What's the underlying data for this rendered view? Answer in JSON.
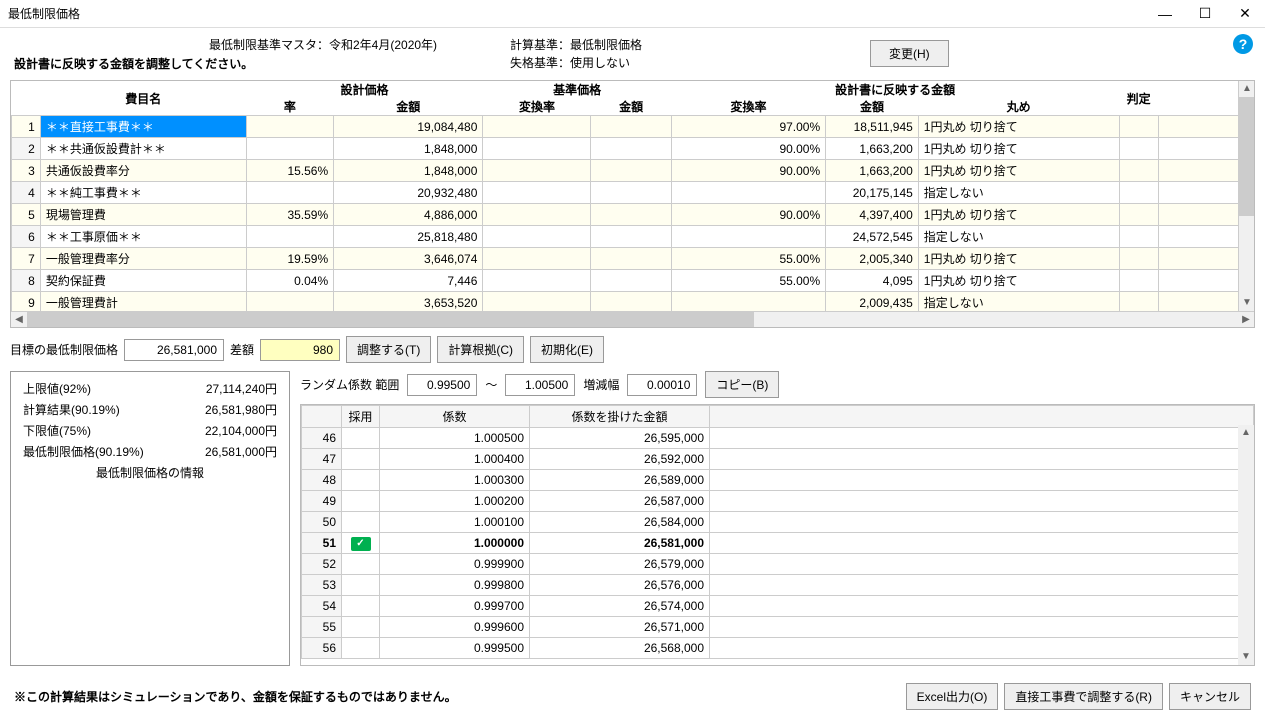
{
  "window": {
    "title": "最低制限価格"
  },
  "header": {
    "master_label": "最低制限基準マスタ：令和2年4月(2020年)",
    "calc_basis_label": "計算基準：",
    "calc_basis_value": "最低制限価格",
    "fail_basis_label": "失格基準：",
    "fail_basis_value": "使用しない",
    "change_btn": "変更(H)",
    "instruction": "設計書に反映する金額を調整してください。"
  },
  "grid1": {
    "headers": {
      "item": "費目名",
      "design_price": "設計価格",
      "rate": "率",
      "amount": "金額",
      "base_price": "基準価格",
      "conv_rate": "変換率",
      "reflect": "設計書に反映する金額",
      "round": "丸め",
      "judge": "判定"
    },
    "rows": [
      {
        "n": "1",
        "name": "＊＊直接工事費＊＊",
        "rate": "",
        "amount": "19,084,480",
        "brate": "",
        "bamount": "",
        "crate": "97.00%",
        "ramount": "18,511,945",
        "round": "1円丸め 切り捨て",
        "sel": true
      },
      {
        "n": "2",
        "name": "＊＊共通仮設費計＊＊",
        "rate": "",
        "amount": "1,848,000",
        "brate": "",
        "bamount": "",
        "crate": "90.00%",
        "ramount": "1,663,200",
        "round": "1円丸め 切り捨て"
      },
      {
        "n": "3",
        "name": "  共通仮設費率分",
        "rate": "15.56%",
        "amount": "1,848,000",
        "brate": "",
        "bamount": "",
        "crate": "90.00%",
        "ramount": "1,663,200",
        "round": "1円丸め 切り捨て"
      },
      {
        "n": "4",
        "name": "＊＊純工事費＊＊",
        "rate": "",
        "amount": "20,932,480",
        "brate": "",
        "bamount": "",
        "crate": "",
        "ramount": "20,175,145",
        "round": "指定しない"
      },
      {
        "n": "5",
        "name": "現場管理費",
        "rate": "35.59%",
        "amount": "4,886,000",
        "brate": "",
        "bamount": "",
        "crate": "90.00%",
        "ramount": "4,397,400",
        "round": "1円丸め 切り捨て"
      },
      {
        "n": "6",
        "name": "＊＊工事原価＊＊",
        "rate": "",
        "amount": "25,818,480",
        "brate": "",
        "bamount": "",
        "crate": "",
        "ramount": "24,572,545",
        "round": "指定しない"
      },
      {
        "n": "7",
        "name": "一般管理費率分",
        "rate": "19.59%",
        "amount": "3,646,074",
        "brate": "",
        "bamount": "",
        "crate": "55.00%",
        "ramount": "2,005,340",
        "round": "1円丸め 切り捨て"
      },
      {
        "n": "8",
        "name": "契約保証費",
        "rate": "0.04%",
        "amount": "7,446",
        "brate": "",
        "bamount": "",
        "crate": "55.00%",
        "ramount": "4,095",
        "round": "1円丸め 切り捨て"
      },
      {
        "n": "9",
        "name": "一般管理費計",
        "rate": "",
        "amount": "3,653,520",
        "brate": "",
        "bamount": "",
        "crate": "",
        "ramount": "2,009,435",
        "round": "指定しない"
      }
    ]
  },
  "mid": {
    "target_label": "目標の最低制限価格",
    "target_value": "26,581,000",
    "diff_label": "差額",
    "diff_value": "980",
    "adjust_btn": "調整する(T)",
    "basis_btn": "計算根拠(C)",
    "init_btn": "初期化(E)"
  },
  "info": {
    "rows": [
      {
        "label": "上限値(92%)",
        "value": "27,114,240円"
      },
      {
        "label": "計算結果(90.19%)",
        "value": "26,581,980円"
      },
      {
        "label": "下限値(75%)",
        "value": "22,104,000円"
      },
      {
        "label": "最低制限価格(90.19%)",
        "value": "26,581,000円"
      }
    ],
    "title": "最低制限価格の情報"
  },
  "random": {
    "label": "ランダム係数  範囲",
    "min": "0.99500",
    "tilde": "～",
    "max": "1.00500",
    "step_label": "増減幅",
    "step": "0.00010",
    "copy_btn": "コピー(B)",
    "headers": {
      "adopt": "採用",
      "coeff": "係数",
      "amount": "係数を掛けた金額"
    },
    "rows": [
      {
        "n": "46",
        "coeff": "1.000500",
        "amount": "26,595,000"
      },
      {
        "n": "47",
        "coeff": "1.000400",
        "amount": "26,592,000"
      },
      {
        "n": "48",
        "coeff": "1.000300",
        "amount": "26,589,000"
      },
      {
        "n": "49",
        "coeff": "1.000200",
        "amount": "26,587,000"
      },
      {
        "n": "50",
        "coeff": "1.000100",
        "amount": "26,584,000"
      },
      {
        "n": "51",
        "coeff": "1.000000",
        "amount": "26,581,000",
        "adopt": true
      },
      {
        "n": "52",
        "coeff": "0.999900",
        "amount": "26,579,000"
      },
      {
        "n": "53",
        "coeff": "0.999800",
        "amount": "26,576,000"
      },
      {
        "n": "54",
        "coeff": "0.999700",
        "amount": "26,574,000"
      },
      {
        "n": "55",
        "coeff": "0.999600",
        "amount": "26,571,000"
      },
      {
        "n": "56",
        "coeff": "0.999500",
        "amount": "26,568,000"
      }
    ]
  },
  "footer": {
    "note": "※この計算結果はシミュレーションであり、金額を保証するものではありません。",
    "excel_btn": "Excel出力(O)",
    "adjust_direct_btn": "直接工事費で調整する(R)",
    "cancel_btn": "キャンセル"
  }
}
